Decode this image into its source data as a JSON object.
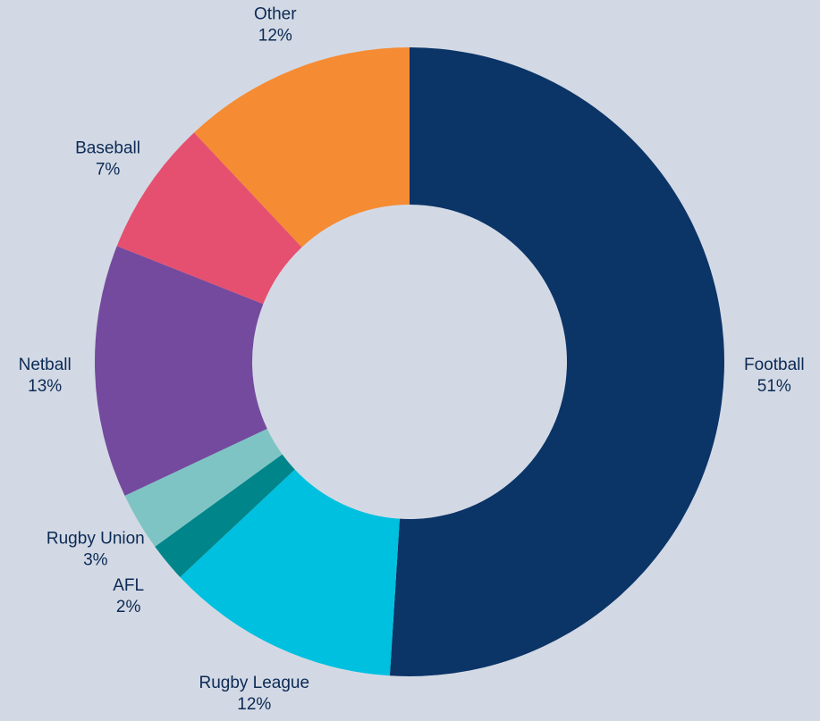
{
  "chart_data": {
    "type": "donut",
    "categories": [
      "Football",
      "Rugby League",
      "AFL",
      "Rugby Union",
      "Netball",
      "Baseball",
      "Other"
    ],
    "values": [
      51,
      12,
      2,
      3,
      13,
      7,
      12
    ],
    "value_labels": [
      "51%",
      "12%",
      "2%",
      "3%",
      "13%",
      "7%",
      "12%"
    ],
    "colors": [
      "#0b3467",
      "#00c0e0",
      "#00868a",
      "#7fc4c4",
      "#744a9e",
      "#e55070",
      "#f58b33"
    ]
  }
}
